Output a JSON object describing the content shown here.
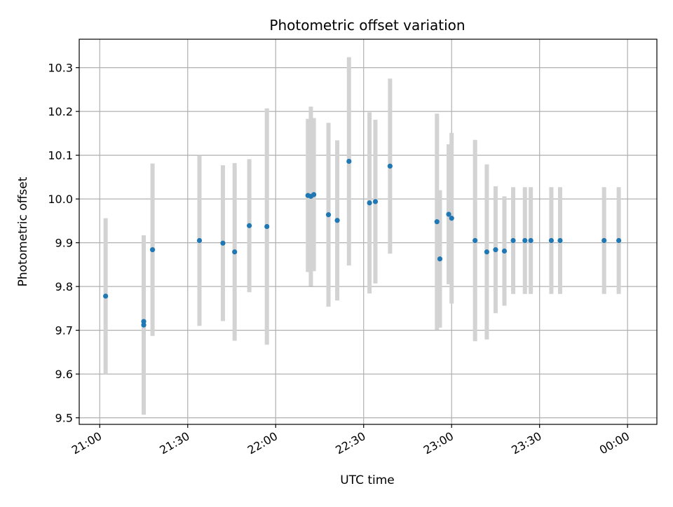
{
  "chart_data": {
    "type": "scatter",
    "title": "Photometric offset variation",
    "xlabel": "UTC time",
    "ylabel": "Photometric offset",
    "x_unit": "UTC time (HH:MM)",
    "xlim": [
      "20:53",
      "24:10"
    ],
    "ylim": [
      9.485,
      10.365
    ],
    "grid": true,
    "legend": "none",
    "xticks": [
      {
        "t": "21:00",
        "label": "21:00"
      },
      {
        "t": "21:30",
        "label": "21:30"
      },
      {
        "t": "22:00",
        "label": "22:00"
      },
      {
        "t": "22:30",
        "label": "22:30"
      },
      {
        "t": "23:00",
        "label": "23:00"
      },
      {
        "t": "23:30",
        "label": "23:30"
      },
      {
        "t": "24:00",
        "label": "00:00"
      }
    ],
    "yticks": [
      {
        "v": 9.5,
        "label": "9.5"
      },
      {
        "v": 9.6,
        "label": "9.6"
      },
      {
        "v": 9.7,
        "label": "9.7"
      },
      {
        "v": 9.8,
        "label": "9.8"
      },
      {
        "v": 9.9,
        "label": "9.9"
      },
      {
        "v": 10.0,
        "label": "10.0"
      },
      {
        "v": 10.1,
        "label": "10.1"
      },
      {
        "v": 10.2,
        "label": "10.2"
      },
      {
        "v": 10.3,
        "label": "10.3"
      }
    ],
    "colors": {
      "point": "#1f77b4",
      "error_bar": "#d3d3d3",
      "grid": "#b0b0b0"
    },
    "points": [
      {
        "t": "21:02",
        "y": 9.778,
        "err": 0.178
      },
      {
        "t": "21:15",
        "y": 9.712,
        "err": 0.205
      },
      {
        "t": "21:15",
        "y": 9.72,
        "err": 0.197
      },
      {
        "t": "21:18",
        "y": 9.884,
        "err": 0.197
      },
      {
        "t": "21:34",
        "y": 9.905,
        "err": 0.195
      },
      {
        "t": "21:42",
        "y": 9.899,
        "err": 0.178
      },
      {
        "t": "21:46",
        "y": 9.879,
        "err": 0.203
      },
      {
        "t": "21:51",
        "y": 9.939,
        "err": 0.152
      },
      {
        "t": "21:57",
        "y": 9.937,
        "err": 0.27
      },
      {
        "t": "22:11",
        "y": 10.008,
        "err": 0.175
      },
      {
        "t": "22:12",
        "y": 10.006,
        "err": 0.205
      },
      {
        "t": "22:13",
        "y": 10.01,
        "err": 0.175
      },
      {
        "t": "22:18",
        "y": 9.964,
        "err": 0.21
      },
      {
        "t": "22:21",
        "y": 9.951,
        "err": 0.183
      },
      {
        "t": "22:25",
        "y": 10.086,
        "err": 0.238
      },
      {
        "t": "22:32",
        "y": 9.991,
        "err": 0.207
      },
      {
        "t": "22:34",
        "y": 9.994,
        "err": 0.187
      },
      {
        "t": "22:39",
        "y": 10.075,
        "err": 0.2
      },
      {
        "t": "22:55",
        "y": 9.948,
        "err": 0.247
      },
      {
        "t": "22:56",
        "y": 9.863,
        "err": 0.157
      },
      {
        "t": "22:59",
        "y": 9.965,
        "err": 0.16
      },
      {
        "t": "23:00",
        "y": 9.956,
        "err": 0.195
      },
      {
        "t": "23:08",
        "y": 9.905,
        "err": 0.23
      },
      {
        "t": "23:12",
        "y": 9.879,
        "err": 0.2
      },
      {
        "t": "23:15",
        "y": 9.884,
        "err": 0.145
      },
      {
        "t": "23:18",
        "y": 9.881,
        "err": 0.125
      },
      {
        "t": "23:21",
        "y": 9.905,
        "err": 0.122
      },
      {
        "t": "23:25",
        "y": 9.905,
        "err": 0.122
      },
      {
        "t": "23:27",
        "y": 9.905,
        "err": 0.122
      },
      {
        "t": "23:34",
        "y": 9.905,
        "err": 0.122
      },
      {
        "t": "23:37",
        "y": 9.905,
        "err": 0.122
      },
      {
        "t": "23:52",
        "y": 9.905,
        "err": 0.122
      },
      {
        "t": "23:57",
        "y": 9.905,
        "err": 0.122
      }
    ]
  }
}
